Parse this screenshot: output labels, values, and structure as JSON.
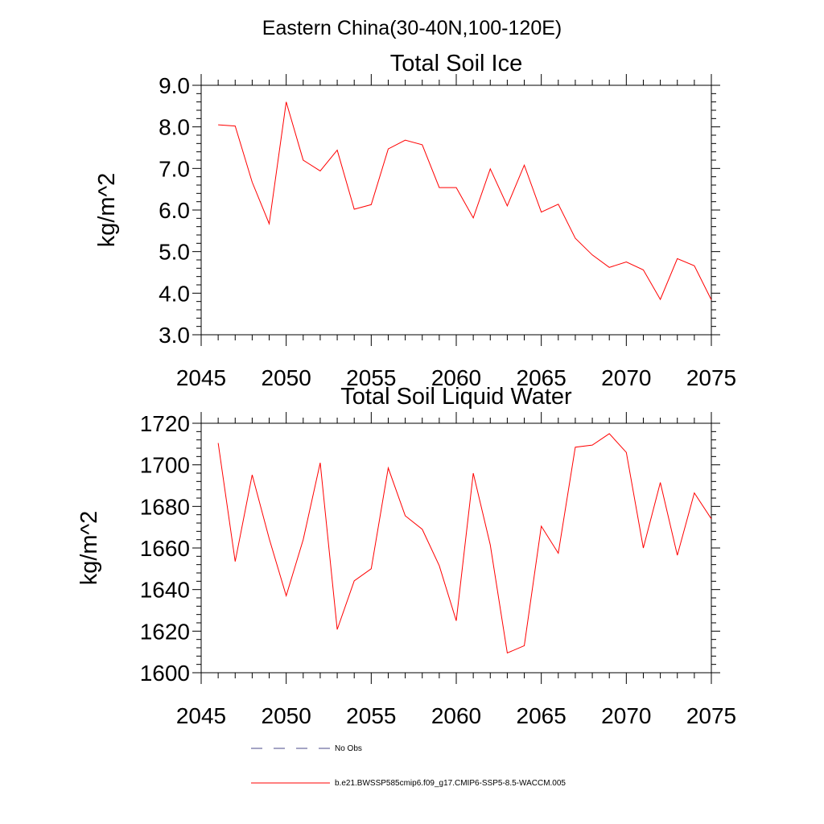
{
  "figure": {
    "suptitle": "Eastern China(30-40N,100-120E)"
  },
  "legend": {
    "entries": [
      {
        "label": "No Obs",
        "style": "dashed",
        "color": "#4a4a8a"
      },
      {
        "label": "b.e21.BWSSP585cmip6.f09_g17.CMIP6-SSP5-8.5-WACCM.005",
        "style": "solid",
        "color": "#ff0000"
      }
    ]
  },
  "chart_data": [
    {
      "type": "line",
      "title": "Total Soil Ice",
      "ylabel": "kg/m^2",
      "xlabel": "",
      "xlim": [
        2045,
        2075
      ],
      "ylim": [
        3.0,
        9.0
      ],
      "xticks": [
        2045,
        2050,
        2055,
        2060,
        2065,
        2070,
        2075
      ],
      "xtick_labels": [
        "2045",
        "2050",
        "2055",
        "2060",
        "2065",
        "2070",
        "2075"
      ],
      "yticks": [
        3,
        4,
        5,
        6,
        7,
        8,
        9
      ],
      "ytick_labels": [
        "3.0",
        "4.0",
        "5.0",
        "6.0",
        "7.0",
        "8.0",
        "9.0"
      ],
      "x": [
        2046,
        2047,
        2048,
        2049,
        2050,
        2051,
        2052,
        2053,
        2054,
        2055,
        2056,
        2057,
        2058,
        2059,
        2060,
        2061,
        2062,
        2063,
        2064,
        2065,
        2066,
        2067,
        2068,
        2069,
        2070,
        2071,
        2072,
        2073,
        2074,
        2075
      ],
      "series": [
        {
          "color": "#ff0000",
          "values": [
            8.05,
            8.02,
            6.67,
            5.67,
            8.6,
            7.2,
            6.94,
            7.44,
            6.02,
            6.13,
            7.47,
            7.68,
            7.57,
            6.54,
            6.54,
            5.81,
            6.99,
            6.1,
            7.08,
            5.95,
            6.14,
            5.32,
            4.92,
            4.62,
            4.75,
            4.56,
            3.85,
            4.83,
            4.66,
            3.84
          ]
        }
      ],
      "grid": false
    },
    {
      "type": "line",
      "title": "Total Soil Liquid Water",
      "ylabel": "kg/m^2",
      "xlabel": "",
      "xlim": [
        2045,
        2075
      ],
      "ylim": [
        1600,
        1720
      ],
      "xticks": [
        2045,
        2050,
        2055,
        2060,
        2065,
        2070,
        2075
      ],
      "xtick_labels": [
        "2045",
        "2050",
        "2055",
        "2060",
        "2065",
        "2070",
        "2075"
      ],
      "yticks": [
        1600,
        1620,
        1640,
        1660,
        1680,
        1700,
        1720
      ],
      "ytick_labels": [
        "1600",
        "1620",
        "1640",
        "1660",
        "1680",
        "1700",
        "1720"
      ],
      "x": [
        2046,
        2047,
        2048,
        2049,
        2050,
        2051,
        2052,
        2053,
        2054,
        2055,
        2056,
        2057,
        2058,
        2059,
        2060,
        2061,
        2062,
        2063,
        2064,
        2065,
        2066,
        2067,
        2068,
        2069,
        2070,
        2071,
        2072,
        2073,
        2074,
        2075
      ],
      "series": [
        {
          "color": "#ff0000",
          "values": [
            1710.5,
            1653.5,
            1695.2,
            1664.5,
            1637.0,
            1664.0,
            1701.0,
            1620.8,
            1644.2,
            1650.0,
            1698.5,
            1675.5,
            1669.0,
            1651.5,
            1625.0,
            1696.0,
            1661.5,
            1609.5,
            1613.0,
            1670.5,
            1657.5,
            1708.5,
            1709.5,
            1715.0,
            1706.0,
            1660.0,
            1691.5,
            1656.5,
            1686.5,
            1674.0
          ]
        }
      ],
      "grid": false
    }
  ]
}
